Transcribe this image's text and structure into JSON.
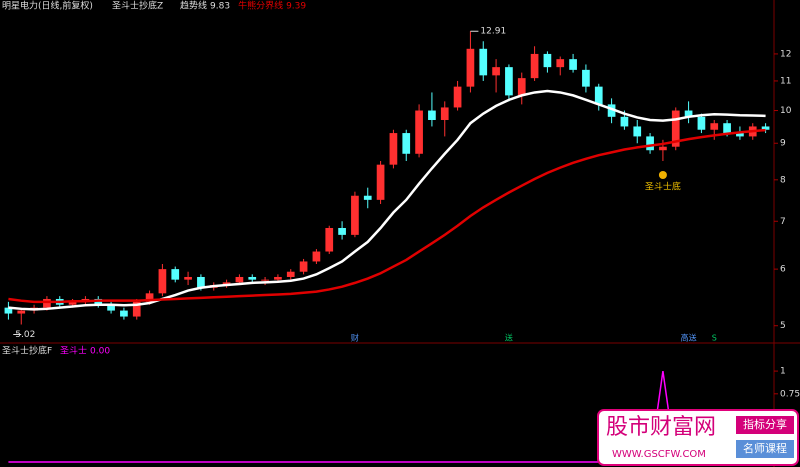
{
  "chart_data": [
    {
      "type": "candlestick",
      "title": "明星电力(日线,前复权)",
      "indicator": "圣斗士抄底Z",
      "up_color": "#ff3030",
      "down_color": "#54ffff",
      "log_scale": true,
      "open": [
        5.3,
        5.2,
        5.25,
        5.3,
        5.45,
        5.35,
        5.4,
        5.45,
        5.35,
        5.25,
        5.15,
        5.4,
        5.55,
        6.0,
        5.8,
        5.85,
        5.65,
        5.7,
        5.75,
        5.85,
        5.8,
        5.8,
        5.85,
        5.95,
        6.15,
        6.35,
        6.85,
        6.7,
        7.6,
        7.5,
        8.4,
        9.3,
        8.7,
        10.0,
        9.7,
        10.1,
        10.8,
        12.2,
        11.2,
        11.5,
        10.5,
        11.1,
        12.0,
        11.5,
        11.8,
        11.4,
        10.8,
        10.2,
        9.8,
        9.5,
        9.2,
        8.8,
        8.9,
        10.0,
        9.8,
        9.4,
        9.6,
        9.3,
        9.2,
        9.5
      ],
      "high": [
        5.4,
        5.3,
        5.35,
        5.5,
        5.5,
        5.45,
        5.5,
        5.5,
        5.4,
        5.3,
        5.45,
        5.6,
        6.1,
        6.05,
        5.95,
        5.9,
        5.75,
        5.8,
        5.9,
        5.9,
        5.85,
        5.9,
        6.0,
        6.2,
        6.4,
        6.9,
        7.0,
        7.7,
        7.8,
        8.5,
        9.4,
        9.4,
        10.2,
        10.6,
        10.3,
        11.0,
        12.91,
        12.5,
        11.8,
        11.6,
        11.3,
        12.3,
        12.1,
        11.9,
        12.0,
        11.6,
        10.9,
        10.4,
        10.0,
        9.7,
        9.3,
        9.1,
        10.1,
        10.3,
        9.9,
        9.7,
        9.7,
        9.5,
        9.6,
        9.6
      ],
      "low": [
        5.1,
        5.02,
        5.2,
        5.25,
        5.3,
        5.3,
        5.35,
        5.3,
        5.2,
        5.1,
        5.1,
        5.35,
        5.5,
        5.75,
        5.7,
        5.6,
        5.6,
        5.65,
        5.7,
        5.75,
        5.7,
        5.75,
        5.8,
        5.9,
        6.1,
        6.3,
        6.6,
        6.65,
        7.3,
        7.4,
        8.3,
        8.5,
        8.6,
        9.5,
        9.2,
        10.0,
        10.6,
        11.0,
        10.6,
        10.3,
        10.2,
        11.0,
        11.3,
        11.2,
        11.3,
        10.6,
        10.0,
        9.6,
        9.4,
        9.0,
        8.7,
        8.5,
        8.8,
        9.6,
        9.3,
        9.1,
        9.2,
        9.1,
        9.1,
        9.3
      ],
      "close": [
        5.2,
        5.25,
        5.3,
        5.45,
        5.35,
        5.4,
        5.45,
        5.35,
        5.25,
        5.15,
        5.4,
        5.55,
        6.0,
        5.8,
        5.85,
        5.65,
        5.7,
        5.75,
        5.85,
        5.8,
        5.8,
        5.85,
        5.95,
        6.15,
        6.35,
        6.85,
        6.7,
        7.6,
        7.5,
        8.4,
        9.3,
        8.7,
        10.0,
        9.7,
        10.1,
        10.8,
        12.2,
        11.2,
        11.5,
        10.5,
        11.1,
        12.0,
        11.5,
        11.8,
        11.4,
        10.8,
        10.2,
        9.8,
        9.5,
        9.2,
        8.8,
        8.9,
        10.0,
        9.8,
        9.4,
        9.6,
        9.3,
        9.2,
        9.5,
        9.4
      ],
      "series": [
        {
          "name": "趋势线",
          "color": "#ffffff",
          "values": [
            5.3,
            5.28,
            5.27,
            5.28,
            5.3,
            5.32,
            5.34,
            5.35,
            5.35,
            5.34,
            5.35,
            5.38,
            5.45,
            5.52,
            5.6,
            5.65,
            5.68,
            5.7,
            5.72,
            5.74,
            5.75,
            5.76,
            5.78,
            5.82,
            5.9,
            6.02,
            6.15,
            6.35,
            6.55,
            6.85,
            7.2,
            7.5,
            7.9,
            8.3,
            8.7,
            9.1,
            9.6,
            9.9,
            10.15,
            10.35,
            10.5,
            10.6,
            10.65,
            10.6,
            10.5,
            10.35,
            10.2,
            10.05,
            9.9,
            9.78,
            9.7,
            9.68,
            9.72,
            9.8,
            9.85,
            9.88,
            9.87,
            9.85,
            9.84,
            9.83
          ]
        },
        {
          "name": "牛熊分界线",
          "color": "#e00000",
          "values": [
            5.45,
            5.42,
            5.4,
            5.4,
            5.4,
            5.41,
            5.41,
            5.42,
            5.42,
            5.42,
            5.42,
            5.43,
            5.44,
            5.45,
            5.46,
            5.47,
            5.48,
            5.49,
            5.5,
            5.51,
            5.52,
            5.53,
            5.54,
            5.56,
            5.58,
            5.62,
            5.67,
            5.74,
            5.82,
            5.92,
            6.05,
            6.18,
            6.35,
            6.52,
            6.7,
            6.9,
            7.12,
            7.32,
            7.5,
            7.68,
            7.85,
            8.02,
            8.18,
            8.32,
            8.45,
            8.56,
            8.66,
            8.74,
            8.82,
            8.88,
            8.93,
            8.98,
            9.05,
            9.12,
            9.18,
            9.23,
            9.28,
            9.32,
            9.36,
            9.39
          ]
        }
      ],
      "annotations": [
        {
          "text": "圣斗士底",
          "at": 51
        }
      ],
      "events": [
        {
          "label": "财",
          "at": 27
        },
        {
          "label": "送",
          "at": 39
        },
        {
          "label": "高送",
          "at": 53
        },
        {
          "label": "S",
          "at": 55
        }
      ],
      "ylim": [
        4.9,
        13.3
      ],
      "yticks": [
        5,
        6,
        7,
        8,
        9,
        10,
        11,
        12
      ]
    },
    {
      "type": "line",
      "indicator": "圣斗士抄底F",
      "series": [
        {
          "name": "圣斗士",
          "color": "#ff00ff",
          "current_label": "0.00",
          "values": [
            0,
            0,
            0,
            0,
            0,
            0,
            0,
            0,
            0,
            0,
            0,
            0,
            0,
            0,
            0,
            0,
            0,
            0,
            0,
            0,
            0,
            0,
            0,
            0,
            0,
            0,
            0,
            0,
            0,
            0,
            0,
            0,
            0,
            0,
            0,
            0,
            0,
            0,
            0,
            0,
            0,
            0,
            0,
            0,
            0,
            0,
            0,
            0,
            0,
            0,
            0,
            1,
            0,
            0,
            0,
            0,
            0,
            0,
            0,
            0
          ]
        }
      ],
      "ylim": [
        0,
        1.1
      ],
      "yticks": [
        0.75,
        1
      ]
    }
  ],
  "watermark": {
    "title": "股市财富网",
    "url": "WWW.GSCFW.COM",
    "tags": [
      "指标分享",
      "名师课程"
    ]
  }
}
